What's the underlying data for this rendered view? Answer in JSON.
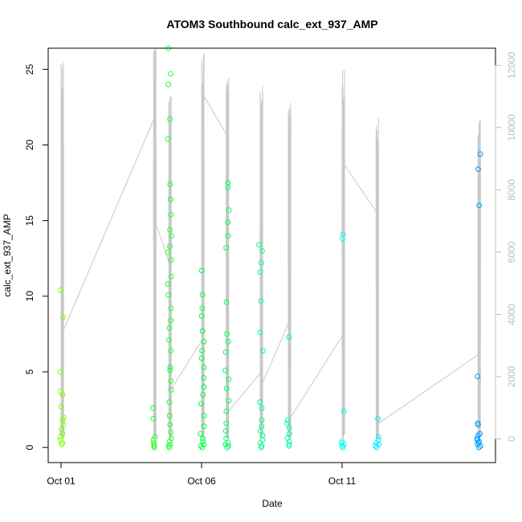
{
  "chart_data": {
    "type": "scatter",
    "title": "ATOM3 Southbound calc_ext_937_AMP",
    "xlabel": "Date",
    "ylabel": "calc_ext_937_AMP",
    "xlim": [
      "Sep 30 13:00",
      "Oct 16 11:00"
    ],
    "ylim": [
      -1,
      26.4
    ],
    "y2lim": [
      -760,
      12550
    ],
    "x_ticks": [
      "Oct 01",
      "Oct 06",
      "Oct 11"
    ],
    "y_ticks": [
      0,
      5,
      10,
      15,
      20,
      25
    ],
    "y2_ticks": [
      0,
      2000,
      4000,
      6000,
      8000,
      10000,
      12000
    ],
    "grid": false,
    "legend": "none",
    "points_series": {
      "name": "calc_ext_937_AMP",
      "marker": "open-circle",
      "color_gradient": [
        "#7fff00",
        "#00ff40",
        "#00ffff",
        "#0090ff"
      ],
      "clusters": [
        {
          "date": "Oct 01",
          "values": [
            0.2,
            0.3,
            0.5,
            0.7,
            0.9,
            1.2,
            1.5,
            1.8,
            2.0,
            2.7,
            3.5,
            3.7,
            5.0,
            8.6,
            10.4
          ]
        },
        {
          "date": "Oct 04 07:00",
          "values": [
            0.0,
            0.1,
            0.2,
            0.3,
            0.5,
            0.7,
            1.9,
            2.6
          ]
        },
        {
          "date": "Oct 04 20:00",
          "values": [
            0.0,
            0.1,
            0.2,
            0.4,
            0.6,
            1.0,
            1.5,
            2.1,
            3.0,
            3.8,
            4.4,
            5.1,
            5.3,
            6.4,
            7.1,
            7.9,
            8.4,
            9.2,
            10.1,
            10.8,
            11.3,
            12.4,
            12.9,
            13.3,
            14.0,
            14.4,
            15.4,
            16.4,
            17.4,
            20.4,
            21.7,
            24.0,
            24.7,
            26.4
          ]
        },
        {
          "date": "Oct 06",
          "values": [
            0.0,
            0.1,
            0.2,
            0.4,
            0.6,
            0.9,
            1.4,
            2.1,
            2.9,
            3.5,
            4.0,
            4.6,
            5.3,
            5.9,
            6.4,
            7.0,
            7.7,
            8.7,
            9.2,
            10.1,
            11.7
          ]
        },
        {
          "date": "Oct 06 21:00",
          "values": [
            0.0,
            0.1,
            0.2,
            0.3,
            0.6,
            1.1,
            1.6,
            2.4,
            3.1,
            3.9,
            4.5,
            5.1,
            6.3,
            7.0,
            7.5,
            9.6,
            13.2,
            14.0,
            14.9,
            15.7,
            17.2,
            17.5
          ]
        },
        {
          "date": "Oct 08 02:00",
          "values": [
            0.0,
            0.1,
            0.3,
            0.5,
            0.8,
            1.1,
            1.4,
            1.8,
            2.6,
            3.0,
            6.4,
            7.6,
            9.7,
            11.6,
            12.2,
            13.0,
            13.4
          ]
        },
        {
          "date": "Oct 09 02:00",
          "values": [
            0.1,
            0.2,
            0.4,
            0.6,
            0.9,
            1.3,
            1.6,
            1.8,
            7.3
          ]
        },
        {
          "date": "Oct 11",
          "values": [
            0.0,
            0.1,
            0.2,
            0.3,
            0.4,
            2.4,
            13.8,
            14.1
          ]
        },
        {
          "date": "Oct 12 05:00",
          "values": [
            0.0,
            0.1,
            0.2,
            0.3,
            0.5,
            0.7,
            1.9
          ]
        },
        {
          "date": "Oct 15 20:00",
          "values": [
            0.0,
            0.1,
            0.2,
            0.3,
            0.4,
            0.5,
            0.6,
            0.8,
            0.9,
            1.5,
            1.6,
            4.7,
            16.0,
            18.4,
            19.4
          ]
        }
      ]
    },
    "line_series": {
      "name": "",
      "axis": "right",
      "color": "#c8c8c8",
      "bursts": [
        {
          "date": "Oct 01",
          "max": 12100
        },
        {
          "date": "Oct 04 07:00",
          "max": 12550
        },
        {
          "date": "Oct 04 20:00",
          "max": 11000
        },
        {
          "date": "Oct 06",
          "max": 12400
        },
        {
          "date": "Oct 06 21:00",
          "max": 11600
        },
        {
          "date": "Oct 08 02:00",
          "max": 11350
        },
        {
          "date": "Oct 09 02:00",
          "max": 10800
        },
        {
          "date": "Oct 11",
          "max": 11850
        },
        {
          "date": "Oct 12 05:00",
          "max": 10300
        },
        {
          "date": "Oct 15 20:00",
          "max": 10250
        }
      ],
      "connectors": [
        {
          "from": "Oct 01",
          "to": "Oct 04 07:00",
          "values": [
            3500,
            10250
          ]
        },
        {
          "from": "Oct 04 07:00",
          "to": "Oct 04 20:00",
          "values": [
            6900,
            5700
          ]
        },
        {
          "from": "Oct 04 20:00",
          "to": "Oct 06",
          "values": [
            1600,
            3150
          ]
        },
        {
          "from": "Oct 06",
          "to": "Oct 06 21:00",
          "values": [
            11000,
            9800
          ]
        },
        {
          "from": "Oct 06 21:00",
          "to": "Oct 08 02:00",
          "values": [
            900,
            2100
          ]
        },
        {
          "from": "Oct 08 02:00",
          "to": "Oct 09 02:00",
          "values": [
            1800,
            3700
          ]
        },
        {
          "from": "Oct 09 02:00",
          "to": "Oct 11",
          "values": [
            700,
            3300
          ]
        },
        {
          "from": "Oct 11",
          "to": "Oct 12 05:00",
          "values": [
            8800,
            7300
          ]
        },
        {
          "from": "Oct 12 05:00",
          "to": "Oct 15 20:00",
          "values": [
            500,
            2700
          ]
        }
      ]
    }
  }
}
